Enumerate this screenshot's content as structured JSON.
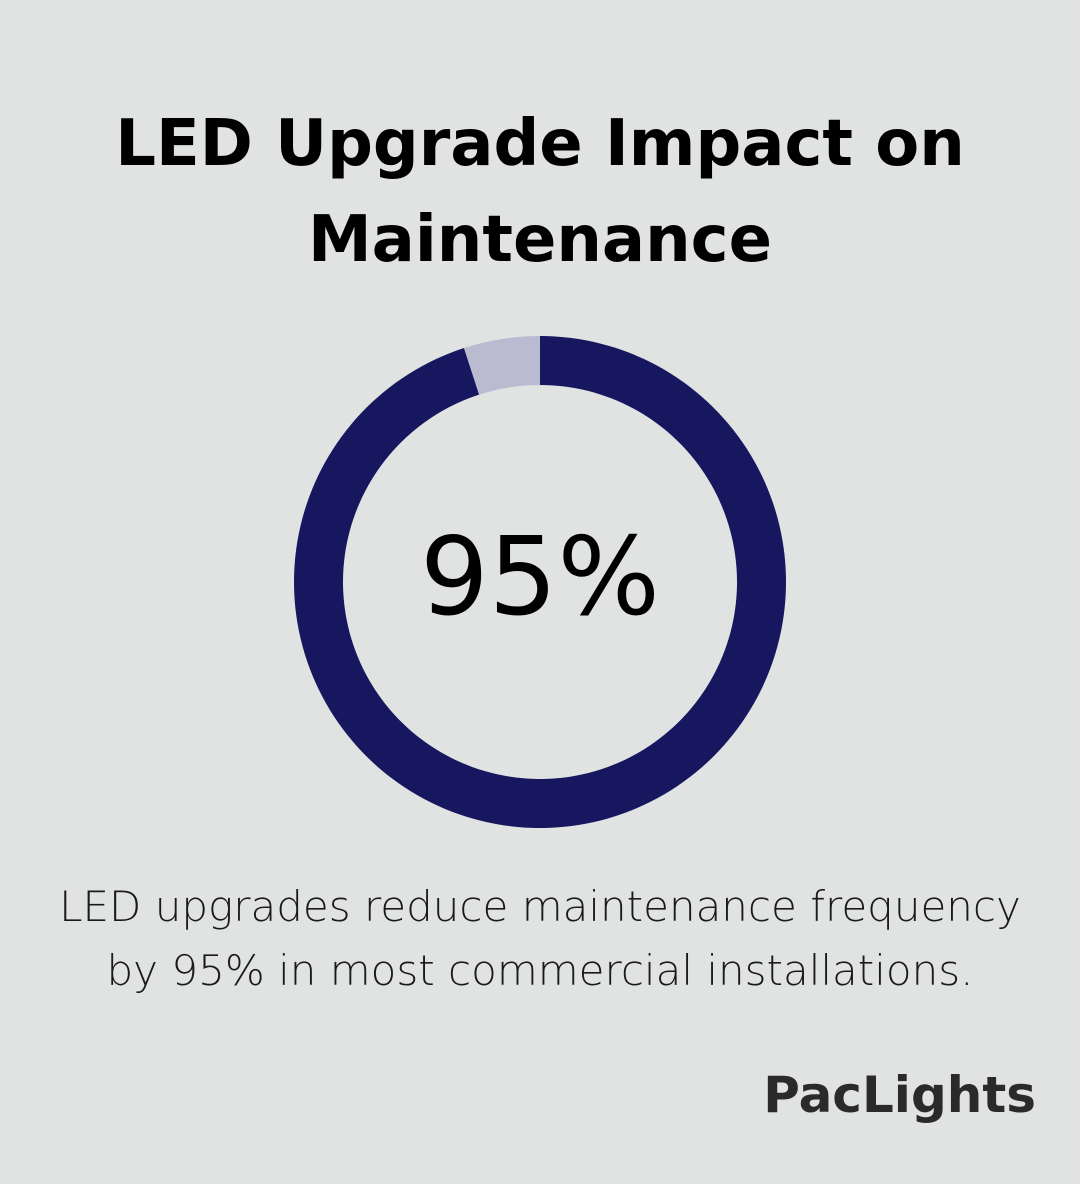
{
  "title": "LED Upgrade Impact on Maintenance",
  "caption": "LED upgrades reduce maintenance frequency by 95% in most commercial installations.",
  "logo": "PacLights",
  "colors": {
    "background": "#e1e3e2",
    "primary": "#16175e",
    "remainder": "#babbd1"
  },
  "chart_data": {
    "type": "pie",
    "style": "donut",
    "categories": [
      "",
      ""
    ],
    "values": [
      95,
      5
    ],
    "center_label": "95%",
    "title": "LED Upgrade Impact on Maintenance"
  }
}
